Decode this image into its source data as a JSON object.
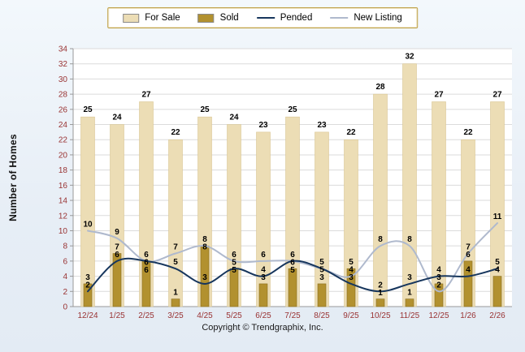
{
  "page": {
    "background": "#E9F0F7",
    "copyright": "Copyright © Trendgraphix, Inc."
  },
  "legend": {
    "items": [
      {
        "label": "For Sale",
        "swatch": "bar",
        "color": "#ECDDB5"
      },
      {
        "label": "Sold",
        "swatch": "bar",
        "color": "#B2912F"
      },
      {
        "label": "Pended",
        "swatch": "line",
        "color": "#17365D"
      },
      {
        "label": "New Listing",
        "swatch": "line",
        "color": "#AFB9CD"
      }
    ]
  },
  "chart_data": {
    "type": "bar",
    "subtype": "bars-with-overlaid-lines",
    "title": "",
    "xlabel": "",
    "ylabel": "Number of Homes",
    "ylim": [
      0,
      34
    ],
    "ytick_step": 2,
    "grid": true,
    "legend_position": "top",
    "axis_label_color": "#993333",
    "value_label_color": "#000000",
    "categories": [
      "12/24",
      "1/25",
      "2/25",
      "3/25",
      "4/25",
      "5/25",
      "6/25",
      "7/25",
      "8/25",
      "9/25",
      "10/25",
      "11/25",
      "12/25",
      "1/26",
      "2/26"
    ],
    "series": [
      {
        "name": "For Sale",
        "type": "bar",
        "color": "#ECDDB5",
        "values": [
          25,
          24,
          27,
          22,
          25,
          24,
          23,
          25,
          23,
          22,
          28,
          32,
          27,
          22,
          27
        ]
      },
      {
        "name": "Sold",
        "type": "bar",
        "color": "#B2912F",
        "values": [
          3,
          7,
          6,
          1,
          8,
          5,
          3,
          5,
          3,
          5,
          1,
          1,
          3,
          6,
          4
        ]
      },
      {
        "name": "Pended",
        "type": "line",
        "color": "#17365D",
        "values": [
          2,
          6,
          6,
          5,
          3,
          5,
          4,
          6,
          5,
          3,
          2,
          3,
          4,
          4,
          5
        ]
      },
      {
        "name": "New Listing",
        "type": "line",
        "color": "#AFB9CD",
        "values": [
          10,
          9,
          6,
          7,
          8,
          6,
          6,
          6,
          5,
          4,
          8,
          8,
          2,
          7,
          11
        ]
      }
    ]
  }
}
